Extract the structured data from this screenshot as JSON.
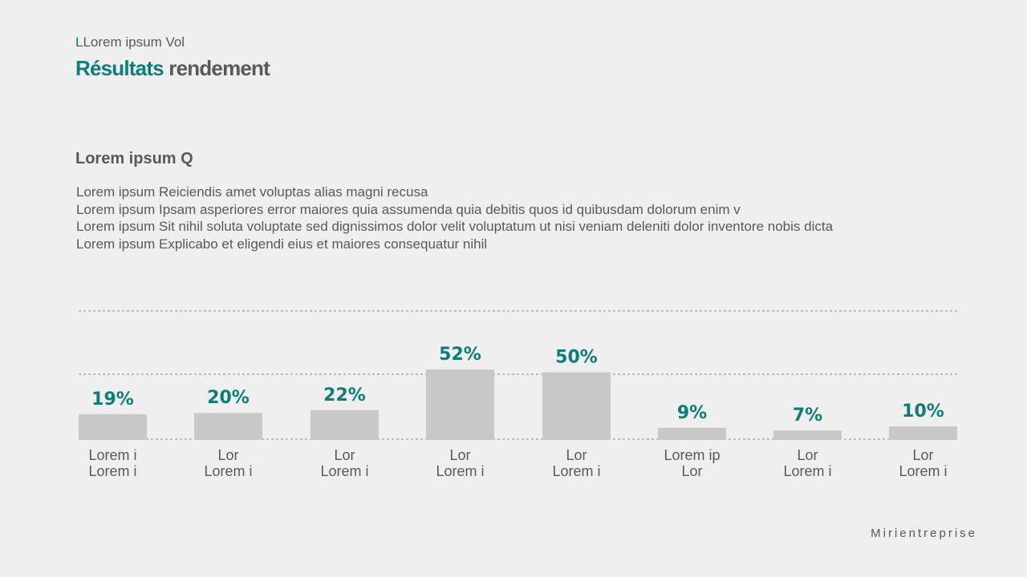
{
  "header": {
    "kicker_accent": "L",
    "kicker": "Lorem ipsum Vol",
    "title_accent": "Résultats",
    "title": "rendement"
  },
  "section": {
    "heading": "Lorem ipsum Q",
    "lines": [
      "Lorem ipsum Reiciendis amet voluptas alias magni recusa",
      "Lorem ipsum Ipsam asperiores error maiores quia assumenda quia debitis quos id quibusdam dolorum enim v",
      "Lorem ipsum Sit nihil soluta voluptate sed dignissimos dolor velit voluptatum ut nisi veniam deleniti dolor inventore nobis dicta",
      "Lorem ipsum Explicabo et eligendi eius et maiores consequatur nihil"
    ]
  },
  "chart_data": {
    "type": "bar",
    "categories": [
      [
        "Lorem i",
        "Lorem i"
      ],
      [
        "Lor",
        "Lorem i"
      ],
      [
        "Lor",
        "Lorem i"
      ],
      [
        "Lor",
        "Lorem i"
      ],
      [
        "Lor",
        "Lorem i"
      ],
      [
        "Lorem ip",
        "Lor"
      ],
      [
        "Lor",
        "Lorem i"
      ],
      [
        "Lor",
        "Lorem i"
      ]
    ],
    "values": [
      19,
      20,
      22,
      52,
      50,
      9,
      7,
      10
    ],
    "data_labels": [
      "19%",
      "20%",
      "22%",
      "52%",
      "50%",
      "9%",
      "7%",
      "10%"
    ],
    "unit": "%",
    "grid": true,
    "colors": {
      "bar": "#c8c8c8",
      "label": "#0e7c7b",
      "category": "#595959",
      "grid": "#8a8a8a"
    }
  },
  "footer": {
    "brand": "Mirientreprise"
  }
}
